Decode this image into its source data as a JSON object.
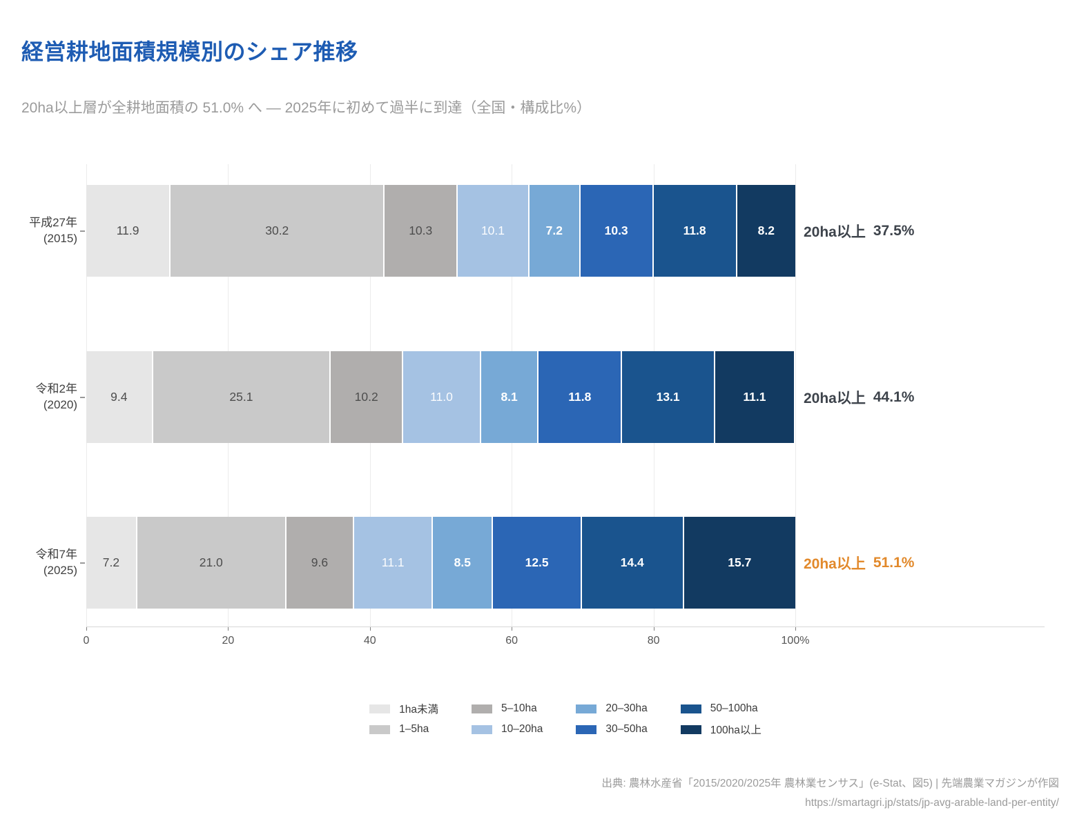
{
  "title": "経営耕地面積規模別のシェア推移",
  "subtitle": "20ha以上層が全耕地面積の 51.0% へ — 2025年に初めて過半に到達（全国・構成比%）",
  "colors": {
    "title": "#1e5cb3",
    "subtitle": "#9b9b9b",
    "annotation": "#3d434b",
    "annotation_highlight": "#e2892b",
    "grid": "#ebebeb",
    "axis": "#d7d7d7",
    "tick_label": "#555555",
    "gray_value_label": "#4d4d4d",
    "white_value_label": "#ffffff"
  },
  "chart_data": {
    "type": "bar",
    "orientation": "horizontal",
    "stacked": true,
    "unit": "%",
    "xlim": [
      0,
      100
    ],
    "xticks_pct": [
      0,
      20,
      40,
      60,
      80,
      100
    ],
    "xtick_labels": [
      "0",
      "20",
      "40",
      "60",
      "80",
      "100%"
    ],
    "grid": true,
    "legend_position": "bottom-center",
    "series": [
      {
        "name": "1ha未満",
        "color": "#e6e6e6"
      },
      {
        "name": "1–5ha",
        "color": "#c9c9c9"
      },
      {
        "name": "5–10ha",
        "color": "#b0aead"
      },
      {
        "name": "10–20ha",
        "color": "#a5c2e3"
      },
      {
        "name": "20–30ha",
        "color": "#77a9d6"
      },
      {
        "name": "30–50ha",
        "color": "#2b66b5"
      },
      {
        "name": "50–100ha",
        "color": "#1a548e"
      },
      {
        "name": "100ha以上",
        "color": "#123a61"
      }
    ],
    "rows": [
      {
        "era": "平成27年",
        "year": "(2015)",
        "values": [
          "11.9",
          "30.2",
          "10.3",
          "10.1",
          "7.2",
          "10.3",
          "11.8",
          "8.2"
        ],
        "annotation_label": "20ha以上",
        "annotation_value": "37.5%",
        "annotation_color": "#3d434b"
      },
      {
        "era": "令和2年",
        "year": "(2020)",
        "values": [
          "9.4",
          "25.1",
          "10.2",
          "11.0",
          "8.1",
          "11.8",
          "13.1",
          "11.1"
        ],
        "annotation_label": "20ha以上",
        "annotation_value": "44.1%",
        "annotation_color": "#3d434b"
      },
      {
        "era": "令和7年",
        "year": "(2025)",
        "values": [
          "7.2",
          "21.0",
          "9.6",
          "11.1",
          "8.5",
          "12.5",
          "14.4",
          "15.7"
        ],
        "annotation_label": "20ha以上",
        "annotation_value": "51.1%",
        "annotation_color": "#e2892b"
      }
    ],
    "legend_order_row_major": [
      0,
      2,
      4,
      6,
      1,
      3,
      5,
      7
    ]
  },
  "source": {
    "line1": "出典: 農林水産省「2015/2020/2025年 農林業センサス」(e-Stat、図5) | 先端農業マガジンが作図",
    "line2": "https://smartagri.jp/stats/jp-avg-arable-land-per-entity/"
  }
}
